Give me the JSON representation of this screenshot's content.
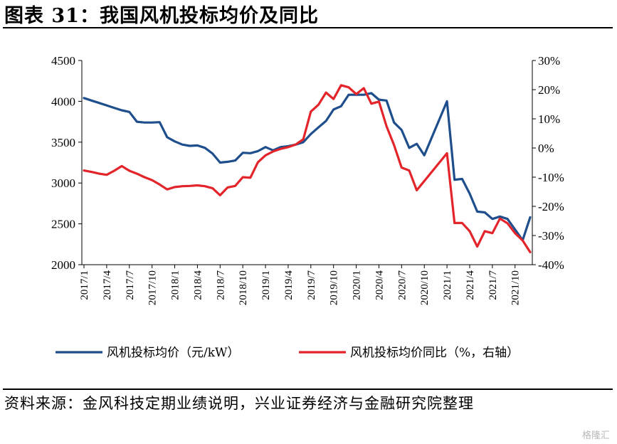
{
  "title": "图表 31：我国风机投标均价及同比",
  "source": "资料来源：金风科技定期业绩说明，兴业证券经济与金融研究院整理",
  "watermark": "格隆汇",
  "chart_data": {
    "type": "line",
    "title": "图表 31：我国风机投标均价及同比",
    "y_left": {
      "ticks": [
        "4500",
        "4000",
        "3500",
        "3000",
        "2500",
        "2000"
      ],
      "range": [
        2000,
        4500
      ]
    },
    "y_right": {
      "ticks": [
        "30%",
        "20%",
        "10%",
        "0%",
        "-10%",
        "-20%",
        "-30%",
        "-40%"
      ],
      "range": [
        -40,
        30
      ]
    },
    "x_tick_labels": [
      "2017/1",
      "2017/4",
      "2017/7",
      "2017/10",
      "2018/1",
      "2018/4",
      "2018/7",
      "2018/10",
      "2019/1",
      "2019/4",
      "2019/7",
      "2019/10",
      "2020/1",
      "2020/4",
      "2020/7",
      "2020/10",
      "2021/1",
      "2021/4",
      "2021/7",
      "2021/10"
    ],
    "x": [
      "2017/1",
      "2017/2",
      "2017/3",
      "2017/4",
      "2017/5",
      "2017/6",
      "2017/7",
      "2017/8",
      "2017/9",
      "2017/10",
      "2017/11",
      "2017/12",
      "2018/1",
      "2018/2",
      "2018/3",
      "2018/4",
      "2018/5",
      "2018/6",
      "2018/7",
      "2018/8",
      "2018/9",
      "2018/10",
      "2018/11",
      "2018/12",
      "2019/1",
      "2019/2",
      "2019/3",
      "2019/4",
      "2019/5",
      "2019/6",
      "2019/7",
      "2019/8",
      "2019/9",
      "2019/10",
      "2019/11",
      "2019/12",
      "2020/1",
      "2020/2",
      "2020/3",
      "2020/4",
      "2020/5",
      "2020/6",
      "2020/7",
      "2020/8",
      "2020/9",
      "2020/10",
      "2020/11",
      "2020/12",
      "2021/1",
      "2021/2",
      "2021/3",
      "2021/4",
      "2021/5",
      "2021/6",
      "2021/7",
      "2021/8",
      "2021/9",
      "2021/10",
      "2021/11",
      "2021/12"
    ],
    "series": [
      {
        "name": "风机投标均价（元/kW）",
        "axis": "left",
        "color": "#1f4e8c",
        "values": [
          4040,
          4010,
          3980,
          3950,
          3920,
          3890,
          3870,
          3750,
          3740,
          3740,
          3745,
          3560,
          3510,
          3470,
          3455,
          3460,
          3430,
          3360,
          3250,
          3260,
          3275,
          3370,
          3365,
          3390,
          3440,
          3400,
          3440,
          3450,
          3470,
          3500,
          3600,
          3680,
          3760,
          3900,
          3940,
          4080,
          4080,
          4080,
          4100,
          4020,
          4010,
          3740,
          3650,
          3430,
          3480,
          3340,
          null,
          null,
          4000,
          3040,
          3050,
          2870,
          2650,
          2640,
          2560,
          2590,
          2560,
          null,
          2300,
          2580
        ]
      },
      {
        "name": "风机投标均价同比（%，右轴）",
        "axis": "right",
        "color": "#e3242b",
        "values": [
          -7.7,
          -8.2,
          -8.8,
          -9.2,
          -7.8,
          -6.2,
          -7.8,
          -8.8,
          -10,
          -11,
          -12.5,
          -14.2,
          -13.4,
          -13.1,
          -13,
          -12.8,
          -13.1,
          -13.8,
          -16.2,
          -13.5,
          -13,
          -10,
          -10.2,
          -4.9,
          -2.5,
          -1.2,
          -0.3,
          0.3,
          1.2,
          3,
          12.5,
          14.8,
          19,
          16.8,
          21.5,
          20.8,
          18.5,
          20.5,
          15.2,
          15.9,
          7.5,
          1,
          -6.7,
          -7.7,
          -14.5,
          null,
          null,
          null,
          -1.8,
          -25.7,
          -25.7,
          -28.5,
          -33.8,
          -28.5,
          -29.2,
          -24.2,
          -25.8,
          -29.2,
          -31.7,
          -35.7
        ]
      }
    ],
    "legend": "bottom"
  }
}
